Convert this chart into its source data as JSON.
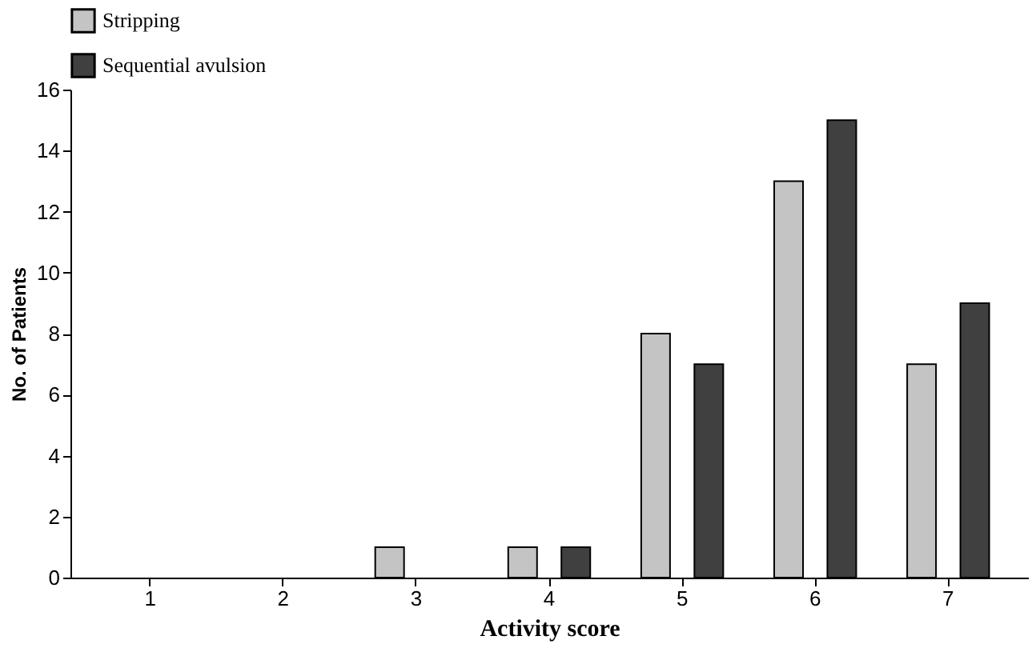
{
  "chart_data": {
    "type": "bar",
    "xlabel": "Activity score",
    "ylabel": "No. of Patients",
    "categories": [
      "1",
      "2",
      "3",
      "4",
      "5",
      "6",
      "7"
    ],
    "series": [
      {
        "name": "Stripping",
        "color": "#c4c4c4",
        "values": [
          0,
          0,
          1,
          1,
          8,
          13,
          7
        ]
      },
      {
        "name": "Sequential avulsion",
        "color": "#404040",
        "values": [
          0,
          0,
          0,
          1,
          7,
          15,
          9
        ]
      }
    ],
    "ylim": [
      0,
      16
    ],
    "yticks": [
      0,
      2,
      4,
      6,
      8,
      10,
      12,
      14,
      16
    ],
    "grid": false,
    "legend": "top"
  }
}
